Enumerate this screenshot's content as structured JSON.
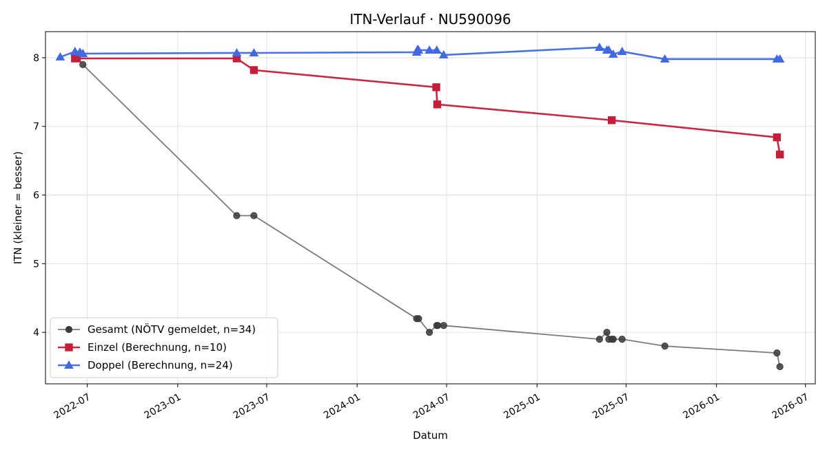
{
  "chart_data": {
    "type": "line",
    "title": "ITN-Verlauf · NU590096",
    "xlabel": "Datum",
    "ylabel": "ITN  (kleiner = besser)",
    "x_type": "date",
    "xlim": [
      "2022-04-07",
      "2026-07-21"
    ],
    "ylim": [
      3.25,
      8.38
    ],
    "x_ticks": [
      "2022-07",
      "2023-01",
      "2023-07",
      "2024-01",
      "2024-07",
      "2025-01",
      "2025-07",
      "2026-01",
      "2026-07"
    ],
    "x_tick_dates": [
      "2022-07-01",
      "2023-01-01",
      "2023-07-01",
      "2024-01-01",
      "2024-07-01",
      "2025-01-01",
      "2025-07-01",
      "2026-01-01",
      "2026-07-01"
    ],
    "y_ticks": [
      4,
      5,
      6,
      7,
      8
    ],
    "grid": true,
    "legend_position": "lower-left",
    "series": [
      {
        "name": "Gesamt (NÖTV gemeldet, n=34)",
        "color": "#555555",
        "marker": "circle",
        "points": [
          {
            "x": "2022-06-22",
            "y": 7.9
          },
          {
            "x": "2023-05-01",
            "y": 5.7
          },
          {
            "x": "2023-06-05",
            "y": 5.7
          },
          {
            "x": "2024-05-01",
            "y": 4.2
          },
          {
            "x": "2024-05-05",
            "y": 4.2
          },
          {
            "x": "2024-05-27",
            "y": 4.0
          },
          {
            "x": "2024-06-11",
            "y": 4.1
          },
          {
            "x": "2024-06-13",
            "y": 4.1
          },
          {
            "x": "2024-06-25",
            "y": 4.1
          },
          {
            "x": "2025-05-08",
            "y": 3.9
          },
          {
            "x": "2025-05-23",
            "y": 4.0
          },
          {
            "x": "2025-05-27",
            "y": 3.9
          },
          {
            "x": "2025-06-02",
            "y": 3.9
          },
          {
            "x": "2025-06-05",
            "y": 3.9
          },
          {
            "x": "2025-06-23",
            "y": 3.9
          },
          {
            "x": "2025-09-18",
            "y": 3.8
          },
          {
            "x": "2026-05-04",
            "y": 3.7
          },
          {
            "x": "2026-05-10",
            "y": 3.5
          }
        ]
      },
      {
        "name": "Einzel (Berechnung, n=10)",
        "color": "#c41e3a",
        "marker": "square",
        "points": [
          {
            "x": "2022-06-06",
            "y": 7.99
          },
          {
            "x": "2022-06-10",
            "y": 7.99
          },
          {
            "x": "2023-05-01",
            "y": 7.99
          },
          {
            "x": "2023-06-05",
            "y": 7.82
          },
          {
            "x": "2024-06-10",
            "y": 7.57
          },
          {
            "x": "2024-06-12",
            "y": 7.32
          },
          {
            "x": "2025-06-02",
            "y": 7.09
          },
          {
            "x": "2026-05-04",
            "y": 6.84
          },
          {
            "x": "2026-05-10",
            "y": 6.59
          }
        ]
      },
      {
        "name": "Doppel (Berechnung, n=24)",
        "color": "#4169e1",
        "marker": "triangle",
        "points": [
          {
            "x": "2022-05-07",
            "y": 8.01
          },
          {
            "x": "2022-06-06",
            "y": 8.09
          },
          {
            "x": "2022-06-16",
            "y": 8.08
          },
          {
            "x": "2022-06-22",
            "y": 8.06
          },
          {
            "x": "2023-05-01",
            "y": 8.07
          },
          {
            "x": "2023-06-05",
            "y": 8.07
          },
          {
            "x": "2024-05-01",
            "y": 8.08
          },
          {
            "x": "2024-05-03",
            "y": 8.12
          },
          {
            "x": "2024-05-05",
            "y": 8.11
          },
          {
            "x": "2024-05-27",
            "y": 8.11
          },
          {
            "x": "2024-06-11",
            "y": 8.11
          },
          {
            "x": "2024-06-25",
            "y": 8.04
          },
          {
            "x": "2025-05-08",
            "y": 8.15
          },
          {
            "x": "2025-05-23",
            "y": 8.11
          },
          {
            "x": "2025-05-27",
            "y": 8.11
          },
          {
            "x": "2025-06-05",
            "y": 8.05
          },
          {
            "x": "2025-06-23",
            "y": 8.09
          },
          {
            "x": "2025-09-18",
            "y": 7.98
          },
          {
            "x": "2026-05-04",
            "y": 7.98
          },
          {
            "x": "2026-05-10",
            "y": 7.98
          }
        ]
      }
    ]
  }
}
